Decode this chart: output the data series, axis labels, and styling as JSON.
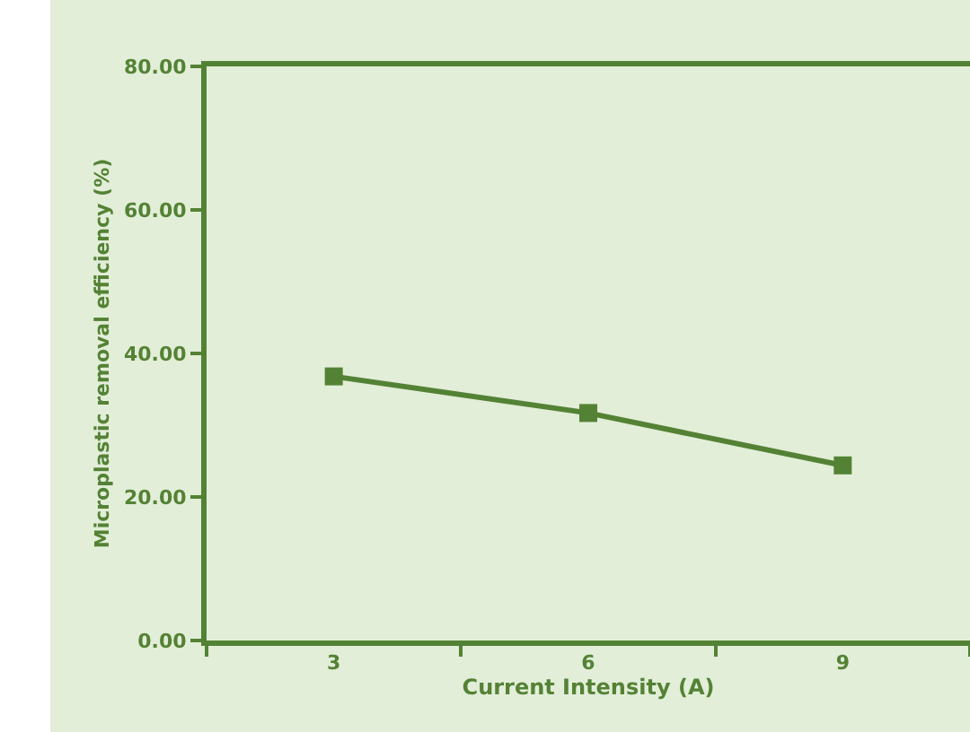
{
  "chart_data": {
    "type": "line",
    "xlabel": "Current Intensity (A)",
    "ylabel": "Microplastic removal efficiency (%)",
    "categories": [
      "3",
      "6",
      "9"
    ],
    "series": [
      {
        "color": "#548235",
        "values": [
          36.8,
          31.7,
          24.4
        ]
      }
    ],
    "ylim": [
      0,
      80
    ],
    "yticks": [
      {
        "value": 0,
        "label": "0.00"
      },
      {
        "value": 20,
        "label": "20.00"
      },
      {
        "value": 40,
        "label": "40.00"
      },
      {
        "value": 60,
        "label": "60.00"
      },
      {
        "value": 80,
        "label": "80.00"
      }
    ],
    "grid": false,
    "marker": "square",
    "line_style": "solid"
  }
}
